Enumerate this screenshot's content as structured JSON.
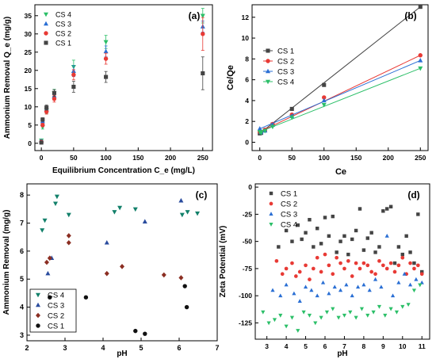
{
  "chart_data": [
    {
      "panel_label": "(a)",
      "type": "scatter",
      "xlabel": "Equilibrium Concentration C_e (mg/L)",
      "ylabel": "Ammonium Removal Q_e (mg/g)",
      "xlim": [
        -10,
        265
      ],
      "ylim": [
        -2,
        38
      ],
      "xticks": [
        0,
        50,
        100,
        150,
        200,
        250
      ],
      "yticks": [
        0,
        5,
        10,
        15,
        20,
        25,
        30,
        35
      ],
      "legend": "top-left",
      "series": [
        {
          "name": "CS 4",
          "color": "#2bbf68",
          "marker": "triangle-down",
          "x": [
            0,
            2,
            8,
            20,
            50,
            100,
            250
          ],
          "y": [
            0.8,
            4.5,
            9.0,
            13.8,
            21.0,
            27.8,
            35.0
          ],
          "err": [
            0.3,
            0.6,
            0.8,
            1.0,
            1.8,
            1.8,
            2.0
          ]
        },
        {
          "name": "CS 3",
          "color": "#2a6fd4",
          "marker": "triangle-up",
          "x": [
            0,
            2,
            8,
            20,
            50,
            100,
            250
          ],
          "y": [
            0.6,
            6.0,
            9.3,
            13.0,
            19.8,
            25.2,
            32.0
          ],
          "err": [
            0.3,
            0.5,
            0.7,
            0.9,
            1.5,
            1.5,
            1.5
          ]
        },
        {
          "name": "CS 2",
          "color": "#e83a35",
          "marker": "circle",
          "x": [
            0,
            2,
            8,
            20,
            50,
            100,
            250
          ],
          "y": [
            0.4,
            5.0,
            8.7,
            12.2,
            18.8,
            23.2,
            30.0
          ],
          "err": [
            0.3,
            0.5,
            0.7,
            0.9,
            1.4,
            1.5,
            4.5
          ]
        },
        {
          "name": "CS 1",
          "color": "#444444",
          "marker": "square",
          "x": [
            0,
            2,
            8,
            20,
            50,
            100,
            250
          ],
          "y": [
            0.2,
            6.5,
            9.8,
            13.8,
            15.5,
            18.2,
            19.2
          ],
          "err": [
            0.3,
            0.5,
            0.7,
            0.9,
            1.5,
            1.5,
            4.5
          ]
        }
      ]
    },
    {
      "panel_label": "(b)",
      "type": "line",
      "xlabel": "Ce",
      "ylabel": "Ce/Qe",
      "xlim": [
        -12,
        262
      ],
      "ylim": [
        -0.8,
        13.2
      ],
      "xticks": [
        0,
        50,
        100,
        150,
        200,
        250
      ],
      "yticks": [
        0,
        2,
        4,
        6,
        8,
        10,
        12
      ],
      "legend": "center-left",
      "series": [
        {
          "name": "CS 1",
          "color": "#444444",
          "marker": "square",
          "x": [
            0,
            2,
            8,
            20,
            50,
            100,
            250
          ],
          "y": [
            0.85,
            0.9,
            1.15,
            1.7,
            3.2,
            5.5,
            13.0
          ]
        },
        {
          "name": "CS 2",
          "color": "#e83a35",
          "marker": "circle",
          "x": [
            0,
            2,
            8,
            20,
            50,
            100,
            250
          ],
          "y": [
            1.0,
            1.0,
            1.2,
            1.75,
            2.65,
            4.3,
            8.35
          ]
        },
        {
          "name": "CS 3",
          "color": "#2a6fd4",
          "marker": "triangle-up",
          "x": [
            0,
            2,
            8,
            20,
            50,
            100,
            250
          ],
          "y": [
            1.3,
            0.95,
            1.1,
            1.65,
            2.5,
            4.0,
            7.85
          ]
        },
        {
          "name": "CS 4",
          "color": "#2bbf68",
          "marker": "triangle-down",
          "x": [
            0,
            2,
            8,
            20,
            50,
            100,
            250
          ],
          "y": [
            1.0,
            0.9,
            1.1,
            1.5,
            2.4,
            3.6,
            7.1
          ]
        }
      ]
    },
    {
      "panel_label": "(c)",
      "type": "scatter",
      "xlabel": "pH",
      "ylabel": "Ammonium Removal (mg/g)",
      "xlim": [
        2.0,
        7.0
      ],
      "ylim": [
        2.8,
        8.4
      ],
      "xticks": [
        2,
        3,
        4,
        5,
        6,
        7
      ],
      "yticks": [
        3,
        4,
        5,
        6,
        7,
        8
      ],
      "legend": "bottom-left",
      "series": [
        {
          "name": "CS 4",
          "color": "#12806a",
          "marker": "triangle-down",
          "x": [
            2.4,
            2.47,
            2.75,
            2.79,
            3.1,
            4.3,
            4.44,
            4.85,
            6.08,
            6.22,
            6.48
          ],
          "y": [
            6.75,
            7.1,
            7.7,
            7.95,
            7.3,
            7.4,
            7.55,
            7.5,
            7.3,
            7.4,
            7.35
          ]
        },
        {
          "name": "CS 3",
          "color": "#2a4c9e",
          "marker": "triangle-up",
          "x": [
            2.55,
            2.65,
            4.1,
            5.1,
            6.05
          ],
          "y": [
            5.2,
            5.75,
            6.3,
            7.05,
            7.8
          ]
        },
        {
          "name": "CS 2",
          "color": "#8b2e22",
          "marker": "diamond",
          "x": [
            2.52,
            2.6,
            3.1,
            3.1,
            4.1,
            4.5,
            5.6,
            6.05
          ],
          "y": [
            5.6,
            5.75,
            6.3,
            6.55,
            5.2,
            5.45,
            5.15,
            5.05
          ]
        },
        {
          "name": "CS 1",
          "color": "#111111",
          "marker": "circle",
          "x": [
            2.6,
            3.55,
            4.85,
            5.1,
            6.15,
            6.2
          ],
          "y": [
            4.35,
            4.35,
            3.15,
            3.05,
            4.75,
            4.0
          ]
        }
      ]
    },
    {
      "panel_label": "(d)",
      "type": "scatter",
      "xlabel": "pH",
      "ylabel": "Zeta Potential (mV)",
      "xlim": [
        2.4,
        11.4
      ],
      "ylim": [
        -140,
        3
      ],
      "xticks": [
        3,
        4,
        5,
        6,
        7,
        8,
        9,
        10,
        11
      ],
      "yticks": [
        -125,
        -100,
        -75,
        -50,
        -25,
        0
      ],
      "legend": "top-left",
      "series": [
        {
          "name": "CS 1",
          "color": "#444444",
          "marker": "square",
          "x": [
            3.6,
            4.0,
            4.3,
            4.6,
            4.8,
            5.0,
            5.2,
            5.4,
            5.6,
            5.8,
            6.0,
            6.2,
            6.4,
            6.6,
            6.8,
            7.0,
            7.2,
            7.4,
            7.6,
            7.8,
            8.0,
            8.2,
            8.4,
            8.6,
            8.8,
            9.0,
            9.2,
            9.4,
            9.6,
            9.8,
            10.0,
            10.2,
            10.4,
            10.6,
            10.8,
            11.0
          ],
          "y": [
            -55,
            -40,
            -50,
            -35,
            -48,
            -42,
            -30,
            -55,
            -38,
            -52,
            -28,
            -45,
            -27,
            -60,
            -50,
            -45,
            -62,
            -48,
            -40,
            -20,
            -58,
            -47,
            -42,
            -60,
            -55,
            -22,
            -20,
            -18,
            -70,
            -55,
            -62,
            -45,
            -60,
            -70,
            -25,
            -78
          ]
        },
        {
          "name": "CS 2",
          "color": "#e83a35",
          "marker": "circle",
          "x": [
            3.5,
            3.8,
            4.0,
            4.3,
            4.5,
            4.7,
            5.0,
            5.2,
            5.4,
            5.6,
            5.8,
            6.0,
            6.2,
            6.4,
            6.6,
            6.8,
            7.0,
            7.2,
            7.4,
            7.6,
            7.8,
            8.0,
            8.2,
            8.4,
            8.6,
            8.8,
            9.0,
            9.2,
            9.4,
            9.6,
            9.8,
            10.0,
            10.2,
            10.4,
            10.6,
            10.8,
            11.0
          ],
          "y": [
            -68,
            -80,
            -75,
            -70,
            -82,
            -78,
            -72,
            -85,
            -75,
            -65,
            -78,
            -62,
            -72,
            -80,
            -65,
            -70,
            -75,
            -68,
            -82,
            -70,
            -75,
            -70,
            -72,
            -78,
            -80,
            -68,
            -72,
            -75,
            -70,
            -78,
            -72,
            -65,
            -80,
            -70,
            -75,
            -72,
            -80
          ]
        },
        {
          "name": "CS 3",
          "color": "#2a6fd4",
          "marker": "triangle-up",
          "x": [
            3.3,
            3.7,
            4.0,
            4.4,
            4.7,
            5.0,
            5.3,
            5.6,
            5.9,
            6.2,
            6.5,
            6.8,
            7.1,
            7.4,
            7.7,
            8.0,
            8.3,
            8.6,
            8.9,
            9.2,
            9.5,
            9.8,
            10.1,
            10.4,
            10.7,
            11.0
          ],
          "y": [
            -95,
            -100,
            -90,
            -98,
            -105,
            -92,
            -95,
            -100,
            -88,
            -98,
            -92,
            -95,
            -90,
            -100,
            -92,
            -90,
            -95,
            -85,
            -92,
            -45,
            -100,
            -88,
            -80,
            -90,
            -85,
            -88
          ]
        },
        {
          "name": "CS 4",
          "color": "#2bbf68",
          "marker": "triangle-down",
          "x": [
            2.8,
            3.1,
            3.4,
            3.7,
            4.0,
            4.3,
            4.6,
            4.9,
            5.2,
            5.5,
            5.8,
            6.1,
            6.4,
            6.7,
            7.0,
            7.3,
            7.6,
            7.9,
            8.2,
            8.5,
            8.8,
            9.1,
            9.4,
            9.7,
            10.0,
            10.3,
            10.6,
            10.9
          ],
          "y": [
            -115,
            -125,
            -122,
            -118,
            -128,
            -120,
            -132,
            -115,
            -118,
            -125,
            -120,
            -115,
            -112,
            -120,
            -118,
            -115,
            -120,
            -112,
            -118,
            -115,
            -110,
            -118,
            -112,
            -115,
            -110,
            -108,
            -95,
            -90
          ]
        }
      ]
    }
  ]
}
